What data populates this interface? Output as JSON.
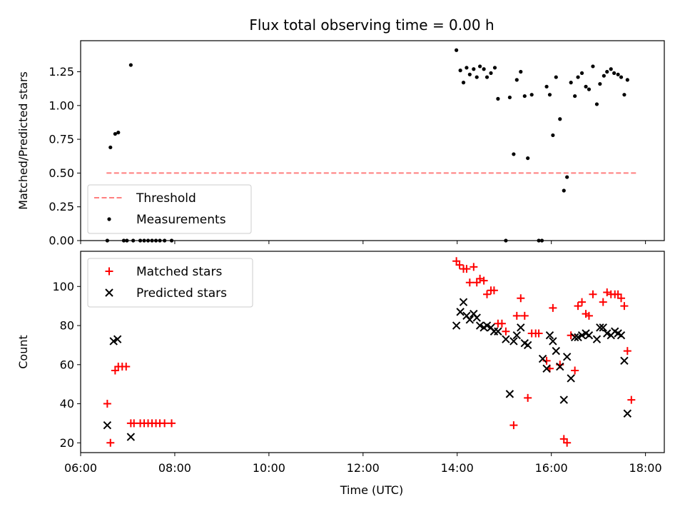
{
  "chart_data": [
    {
      "type": "scatter",
      "title": "Flux total observing time = 0.00 h",
      "xlabel": "",
      "ylabel": "Matched/Predicted stars",
      "xlim": [
        "06:00",
        "18:24"
      ],
      "ylim": [
        0,
        1.48
      ],
      "x_ticks": [
        "06:00",
        "08:00",
        "10:00",
        "12:00",
        "14:00",
        "16:00",
        "18:00"
      ],
      "y_ticks": [
        "0.00",
        "0.25",
        "0.50",
        "0.75",
        "1.00",
        "1.25"
      ],
      "legend_position": "lower-left",
      "series": [
        {
          "name": "Threshold",
          "style": "dashed-line",
          "color": "#ff7f7f",
          "points": [
            [
              "06:33",
              0.5
            ],
            [
              "17:48",
              0.5
            ]
          ]
        },
        {
          "name": "Measurements",
          "style": "dot",
          "color": "#000000",
          "points": [
            [
              "06:34",
              0.0
            ],
            [
              "06:38",
              0.69
            ],
            [
              "06:44",
              0.79
            ],
            [
              "06:48",
              0.8
            ],
            [
              "06:55",
              0.0
            ],
            [
              "06:59",
              0.0
            ],
            [
              "07:04",
              1.3
            ],
            [
              "07:07",
              0.0
            ],
            [
              "07:16",
              0.0
            ],
            [
              "07:21",
              0.0
            ],
            [
              "07:26",
              0.0
            ],
            [
              "07:31",
              0.0
            ],
            [
              "07:36",
              0.0
            ],
            [
              "07:41",
              0.0
            ],
            [
              "07:47",
              0.0
            ],
            [
              "07:56",
              0.0
            ],
            [
              "13:59",
              1.41
            ],
            [
              "14:04",
              1.26
            ],
            [
              "14:08",
              1.17
            ],
            [
              "14:12",
              1.28
            ],
            [
              "14:16",
              1.23
            ],
            [
              "14:21",
              1.27
            ],
            [
              "14:25",
              1.21
            ],
            [
              "14:29",
              1.29
            ],
            [
              "14:34",
              1.27
            ],
            [
              "14:38",
              1.21
            ],
            [
              "14:43",
              1.24
            ],
            [
              "14:48",
              1.28
            ],
            [
              "14:52",
              1.05
            ],
            [
              "15:02",
              0.0
            ],
            [
              "15:07",
              1.06
            ],
            [
              "15:12",
              0.64
            ],
            [
              "15:16",
              1.19
            ],
            [
              "15:21",
              1.25
            ],
            [
              "15:26",
              1.07
            ],
            [
              "15:30",
              0.61
            ],
            [
              "15:35",
              1.08
            ],
            [
              "15:44",
              0.0
            ],
            [
              "15:48",
              0.0
            ],
            [
              "15:54",
              1.14
            ],
            [
              "15:58",
              1.08
            ],
            [
              "16:02",
              0.78
            ],
            [
              "16:06",
              1.21
            ],
            [
              "16:11",
              0.9
            ],
            [
              "16:16",
              0.37
            ],
            [
              "16:20",
              0.47
            ],
            [
              "16:25",
              1.17
            ],
            [
              "16:30",
              1.07
            ],
            [
              "16:34",
              1.21
            ],
            [
              "16:39",
              1.24
            ],
            [
              "16:44",
              1.14
            ],
            [
              "16:48",
              1.12
            ],
            [
              "16:53",
              1.29
            ],
            [
              "16:58",
              1.01
            ],
            [
              "17:02",
              1.16
            ],
            [
              "17:07",
              1.22
            ],
            [
              "17:11",
              1.25
            ],
            [
              "17:16",
              1.27
            ],
            [
              "17:20",
              1.24
            ],
            [
              "17:25",
              1.23
            ],
            [
              "17:29",
              1.21
            ],
            [
              "17:33",
              1.08
            ],
            [
              "17:37",
              1.19
            ]
          ]
        }
      ]
    },
    {
      "type": "scatter",
      "title": "",
      "xlabel": "Time (UTC)",
      "ylabel": "Count",
      "xlim": [
        "06:00",
        "18:24"
      ],
      "ylim": [
        15,
        118
      ],
      "x_ticks": [
        "06:00",
        "08:00",
        "10:00",
        "12:00",
        "14:00",
        "16:00",
        "18:00"
      ],
      "y_ticks": [
        "20",
        "40",
        "60",
        "80",
        "100"
      ],
      "legend_position": "upper-left",
      "series": [
        {
          "name": "Matched stars",
          "marker": "plus",
          "color": "#ff0000",
          "points": [
            [
              "06:34",
              40
            ],
            [
              "06:38",
              20
            ],
            [
              "06:44",
              57
            ],
            [
              "06:48",
              59
            ],
            [
              "06:53",
              59
            ],
            [
              "06:58",
              59
            ],
            [
              "07:04",
              30
            ],
            [
              "07:08",
              30
            ],
            [
              "07:16",
              30
            ],
            [
              "07:21",
              30
            ],
            [
              "07:26",
              30
            ],
            [
              "07:31",
              30
            ],
            [
              "07:36",
              30
            ],
            [
              "07:41",
              30
            ],
            [
              "07:47",
              30
            ],
            [
              "07:56",
              30
            ],
            [
              "13:59",
              113
            ],
            [
              "14:03",
              111
            ],
            [
              "14:08",
              109
            ],
            [
              "14:12",
              109
            ],
            [
              "14:16",
              102
            ],
            [
              "14:21",
              110
            ],
            [
              "14:25",
              102
            ],
            [
              "14:29",
              104
            ],
            [
              "14:34",
              103
            ],
            [
              "14:38",
              96
            ],
            [
              "14:43",
              98
            ],
            [
              "14:47",
              98
            ],
            [
              "14:52",
              81
            ],
            [
              "14:57",
              81
            ],
            [
              "15:02",
              77
            ],
            [
              "15:12",
              29
            ],
            [
              "15:16",
              85
            ],
            [
              "15:21",
              94
            ],
            [
              "15:26",
              85
            ],
            [
              "15:30",
              43
            ],
            [
              "15:35",
              76
            ],
            [
              "15:40",
              76
            ],
            [
              "15:44",
              76
            ],
            [
              "15:54",
              62
            ],
            [
              "15:58",
              58
            ],
            [
              "16:02",
              89
            ],
            [
              "16:11",
              60
            ],
            [
              "16:16",
              22
            ],
            [
              "16:20",
              20
            ],
            [
              "16:25",
              75
            ],
            [
              "16:30",
              57
            ],
            [
              "16:34",
              90
            ],
            [
              "16:39",
              92
            ],
            [
              "16:44",
              86
            ],
            [
              "16:48",
              85
            ],
            [
              "16:53",
              96
            ],
            [
              "17:06",
              92
            ],
            [
              "17:11",
              97
            ],
            [
              "17:16",
              96
            ],
            [
              "17:21",
              96
            ],
            [
              "17:25",
              96
            ],
            [
              "17:29",
              94
            ],
            [
              "17:33",
              90
            ],
            [
              "17:37",
              67
            ],
            [
              "17:42",
              42
            ]
          ]
        },
        {
          "name": "Predicted stars",
          "marker": "x",
          "color": "#000000",
          "points": [
            [
              "06:34",
              29
            ],
            [
              "06:42",
              72
            ],
            [
              "06:47",
              73
            ],
            [
              "07:04",
              23
            ],
            [
              "13:59",
              80
            ],
            [
              "14:04",
              87
            ],
            [
              "14:08",
              92
            ],
            [
              "14:12",
              85
            ],
            [
              "14:16",
              83
            ],
            [
              "14:21",
              86
            ],
            [
              "14:25",
              84
            ],
            [
              "14:29",
              80
            ],
            [
              "14:34",
              79
            ],
            [
              "14:38",
              80
            ],
            [
              "14:43",
              79
            ],
            [
              "14:47",
              77
            ],
            [
              "14:52",
              77
            ],
            [
              "15:02",
              73
            ],
            [
              "15:07",
              45
            ],
            [
              "15:12",
              72
            ],
            [
              "15:16",
              75
            ],
            [
              "15:21",
              79
            ],
            [
              "15:26",
              71
            ],
            [
              "15:30",
              70
            ],
            [
              "15:49",
              63
            ],
            [
              "15:54",
              58
            ],
            [
              "15:58",
              75
            ],
            [
              "16:02",
              72
            ],
            [
              "16:06",
              67
            ],
            [
              "16:11",
              59
            ],
            [
              "16:16",
              42
            ],
            [
              "16:20",
              64
            ],
            [
              "16:25",
              53
            ],
            [
              "16:30",
              74
            ],
            [
              "16:34",
              74
            ],
            [
              "16:39",
              75
            ],
            [
              "16:44",
              76
            ],
            [
              "16:48",
              75
            ],
            [
              "16:58",
              73
            ],
            [
              "17:02",
              79
            ],
            [
              "17:06",
              79
            ],
            [
              "17:11",
              76
            ],
            [
              "17:16",
              75
            ],
            [
              "17:21",
              77
            ],
            [
              "17:25",
              76
            ],
            [
              "17:29",
              75
            ],
            [
              "17:33",
              62
            ],
            [
              "17:37",
              35
            ]
          ]
        }
      ]
    }
  ]
}
